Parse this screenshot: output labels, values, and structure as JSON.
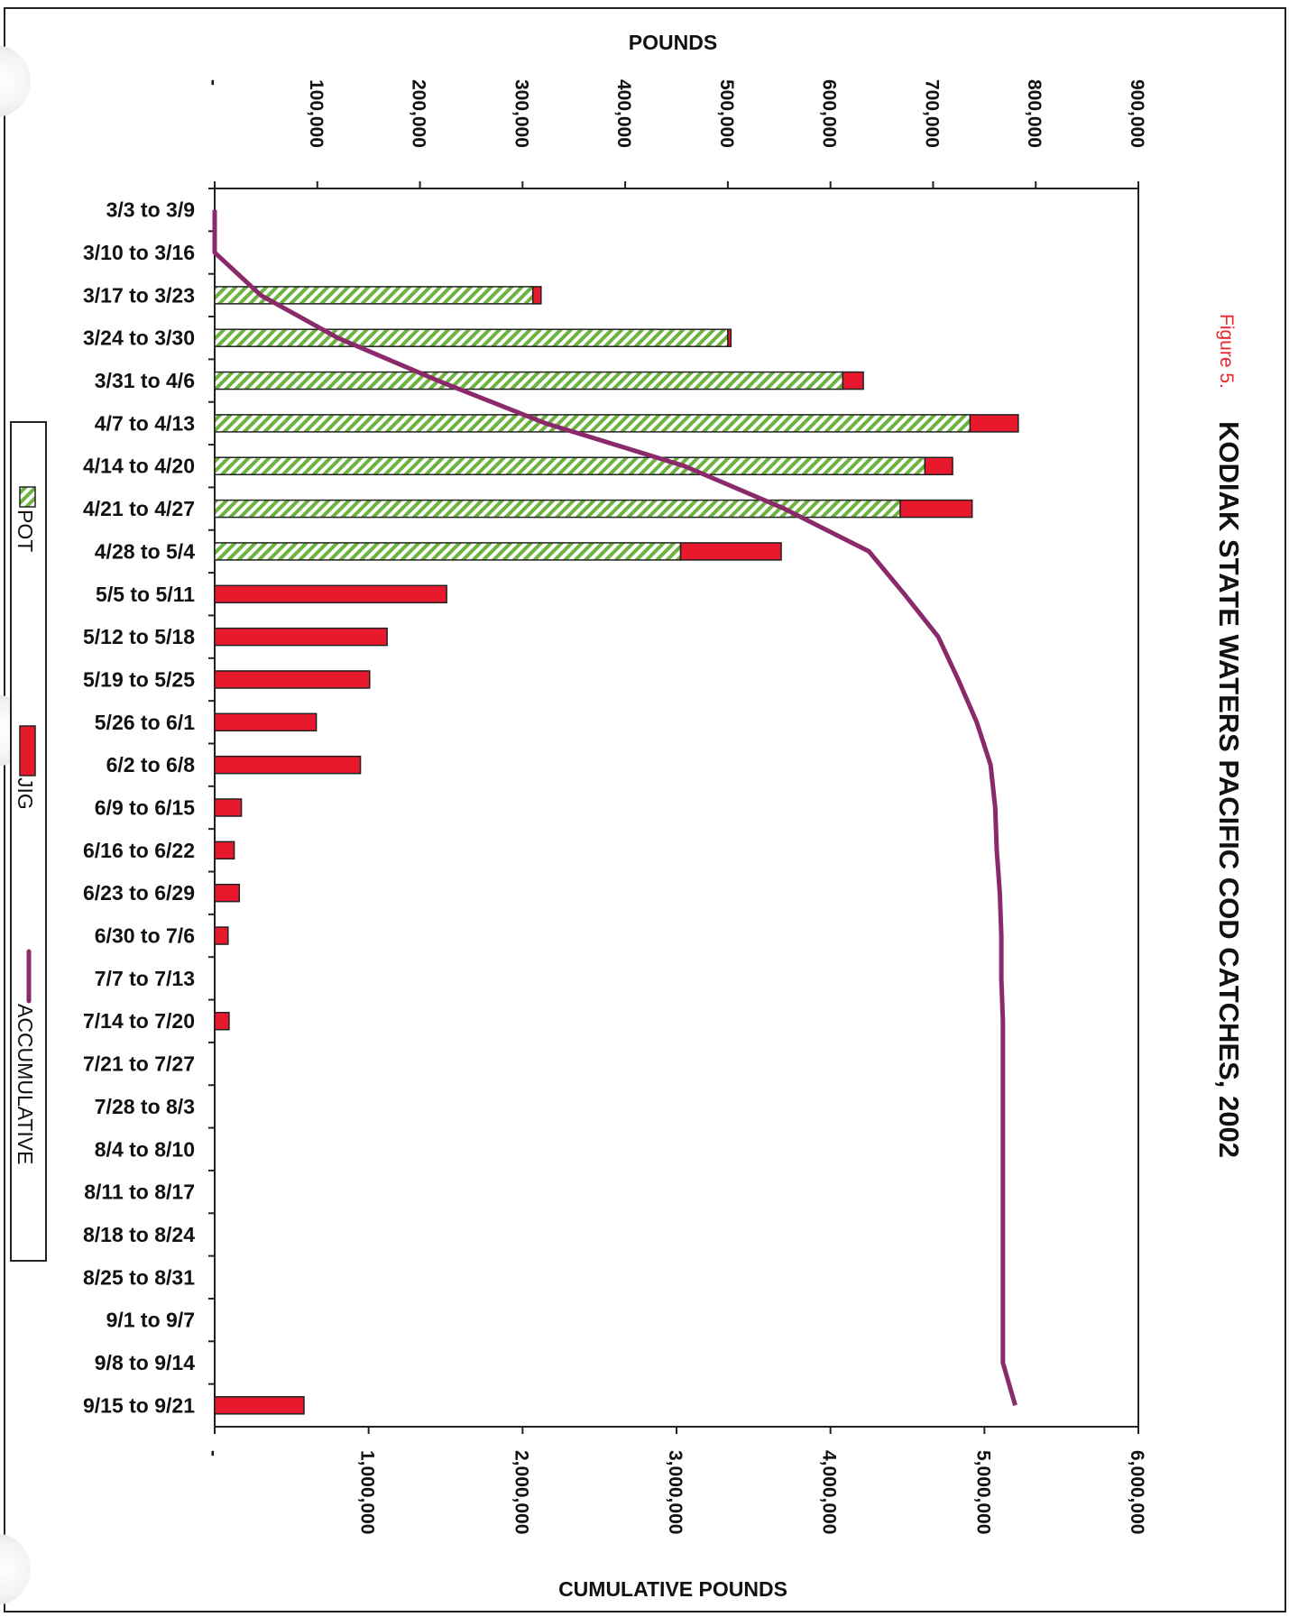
{
  "figure_label": "Figure 5.",
  "colors": {
    "pot_stripe": "#6db33f",
    "jig": "#e8192c",
    "accumulative": "#8b2a6b",
    "axis": "#222222"
  },
  "chart_data": {
    "type": "bar",
    "orientation": "rotated-90-clockwise (horizontal stacked bars with cumulative line)",
    "title": "KODIAK STATE WATERS PACIFIC COD CATCHES, 2002",
    "primary_axis_label": "POUNDS",
    "secondary_axis_label": "CUMULATIVE POUNDS",
    "primary_range": [
      0,
      900000
    ],
    "secondary_range": [
      0,
      6000000
    ],
    "primary_ticks": [
      "-",
      "100,000",
      "200,000",
      "300,000",
      "400,000",
      "500,000",
      "600,000",
      "700,000",
      "800,000",
      "900,000"
    ],
    "secondary_ticks": [
      "-",
      "1,000,000",
      "2,000,000",
      "3,000,000",
      "4,000,000",
      "5,000,000",
      "6,000,000"
    ],
    "categories": [
      "3/3 to 3/9",
      "3/10 to 3/16",
      "3/17 to 3/23",
      "3/24 to 3/30",
      "3/31 to 4/6",
      "4/7 to 4/13",
      "4/14 to 4/20",
      "4/21 to 4/27",
      "4/28 to 5/4",
      "5/5 to 5/11",
      "5/12 to 5/18",
      "5/19 to 5/25",
      "5/26 to 6/1",
      "6/2 to 6/8",
      "6/9 to 6/15",
      "6/16 to 6/22",
      "6/23 to 6/29",
      "6/30 to 7/6",
      "7/7 to 7/13",
      "7/14 to 7/20",
      "7/21 to 7/27",
      "7/28 to 8/3",
      "8/4 to 8/10",
      "8/11 to 8/17",
      "8/18 to 8/24",
      "8/25 to 8/31",
      "9/1 to 9/7",
      "9/8 to 9/14",
      "9/15 to 9/21"
    ],
    "series": [
      {
        "name": "POT",
        "kind": "bar-stacked",
        "values": [
          0,
          0,
          310000,
          500000,
          612000,
          736000,
          692000,
          668000,
          454000,
          0,
          0,
          0,
          0,
          0,
          0,
          0,
          0,
          0,
          0,
          0,
          0,
          0,
          0,
          0,
          0,
          0,
          0,
          0,
          0
        ]
      },
      {
        "name": "JIG",
        "kind": "bar-stacked",
        "values": [
          0,
          0,
          8000,
          3000,
          20000,
          47000,
          27000,
          70000,
          98000,
          226000,
          168000,
          151000,
          99000,
          142000,
          26000,
          19000,
          24000,
          13000,
          0,
          14000,
          0,
          0,
          0,
          0,
          0,
          0,
          0,
          0,
          87000
        ]
      },
      {
        "name": "ACCUMULATIVE",
        "kind": "line",
        "axis": "secondary",
        "values": [
          0,
          0,
          300000,
          800000,
          1450000,
          2150000,
          3050000,
          3700000,
          4250000,
          4480000,
          4700000,
          4830000,
          4950000,
          5040000,
          5070000,
          5080000,
          5100000,
          5110000,
          5110000,
          5120000,
          5120000,
          5120000,
          5120000,
          5120000,
          5120000,
          5120000,
          5120000,
          5120000,
          5200000
        ]
      }
    ],
    "legend": [
      "POT",
      "JIG",
      "ACCUMULATIVE"
    ],
    "legend_position": "bottom (rotated view)",
    "grid": false
  }
}
